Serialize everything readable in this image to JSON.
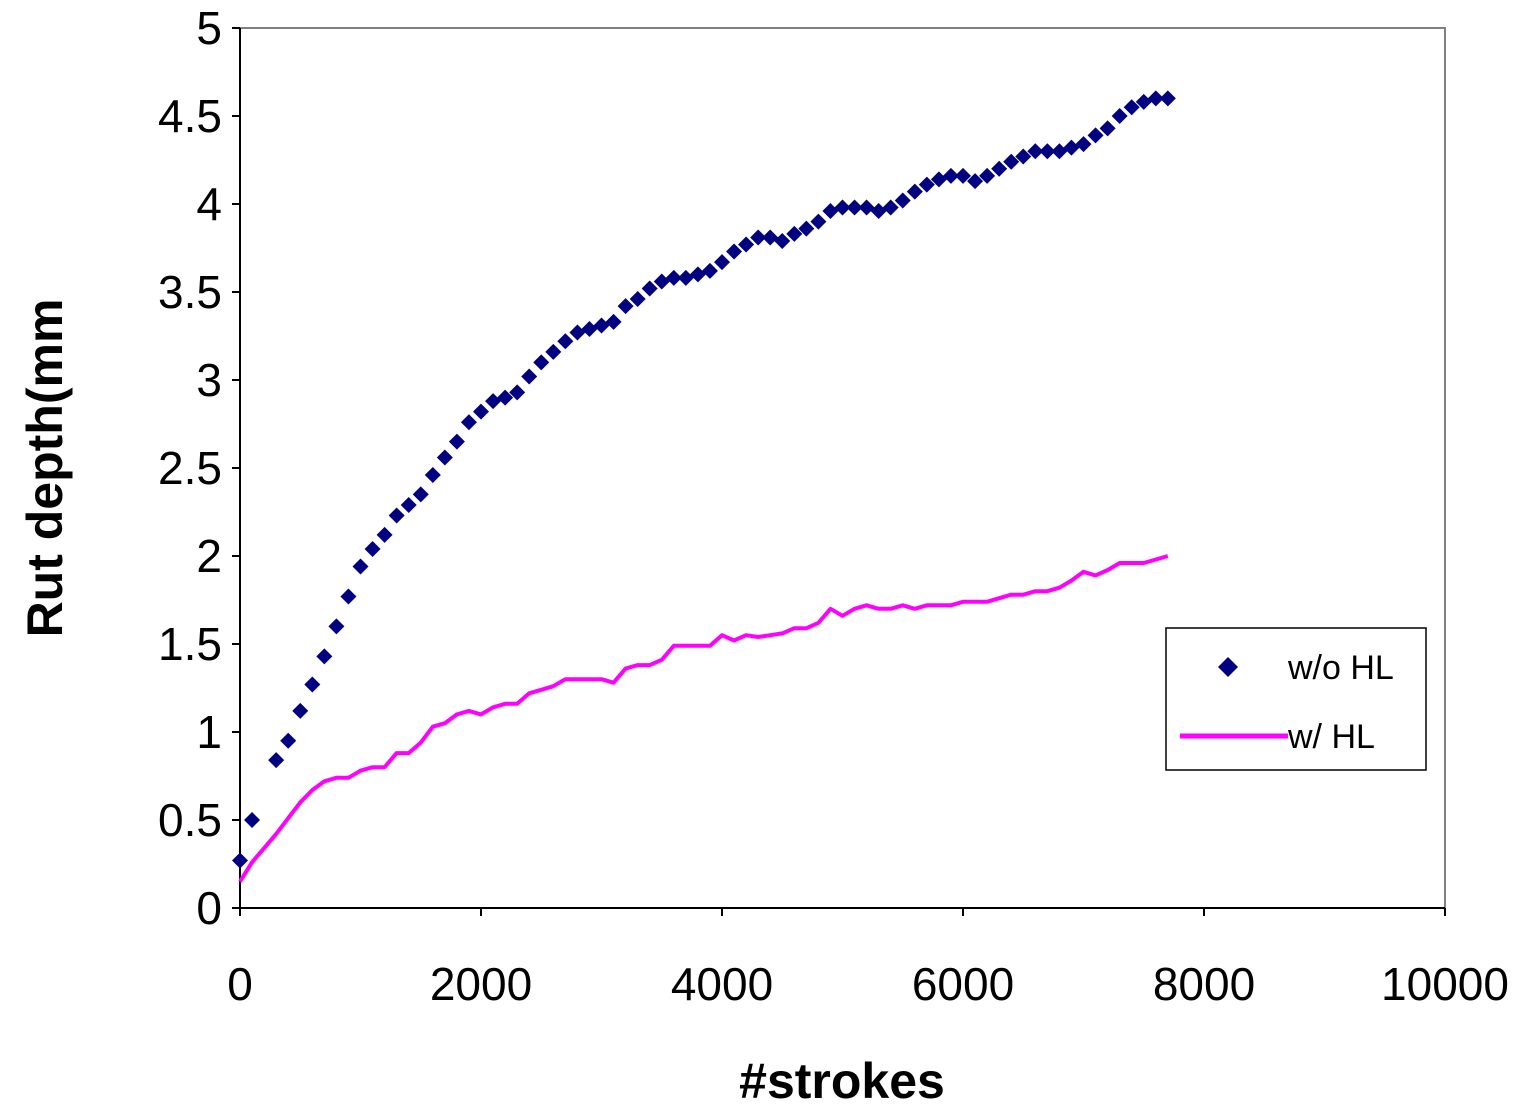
{
  "chart_data": {
    "type": "scatter",
    "xlabel": "#strokes",
    "ylabel": "Rut depth(mm",
    "xlim": [
      0,
      10000
    ],
    "ylim": [
      0,
      5
    ],
    "xticks": [
      "0",
      "2000",
      "4000",
      "6000",
      "8000",
      "10000"
    ],
    "yticks": [
      "0",
      "0.5",
      "1",
      "1.5",
      "2",
      "2.5",
      "3",
      "3.5",
      "4",
      "4.5",
      "5"
    ],
    "grid": false,
    "legend_position": "right",
    "series": [
      {
        "name": "w/o HL",
        "marker": "diamond",
        "color": "#000080",
        "x": [
          0,
          100,
          300,
          400,
          500,
          600,
          700,
          800,
          900,
          1000,
          1100,
          1200,
          1300,
          1400,
          1500,
          1600,
          1700,
          1800,
          1900,
          2000,
          2100,
          2200,
          2300,
          2400,
          2500,
          2600,
          2700,
          2800,
          2900,
          3000,
          3100,
          3200,
          3300,
          3400,
          3500,
          3600,
          3700,
          3800,
          3900,
          4000,
          4100,
          4200,
          4300,
          4400,
          4500,
          4600,
          4700,
          4800,
          4900,
          5000,
          5100,
          5200,
          5300,
          5400,
          5500,
          5600,
          5700,
          5800,
          5900,
          6000,
          6100,
          6200,
          6300,
          6400,
          6500,
          6600,
          6700,
          6800,
          6900,
          7000,
          7100,
          7200,
          7300,
          7400,
          7500,
          7600,
          7700
        ],
        "y": [
          0.27,
          0.5,
          0.84,
          0.95,
          1.12,
          1.27,
          1.43,
          1.6,
          1.77,
          1.94,
          2.04,
          2.12,
          2.23,
          2.29,
          2.35,
          2.46,
          2.56,
          2.65,
          2.76,
          2.82,
          2.88,
          2.9,
          2.93,
          3.02,
          3.1,
          3.16,
          3.22,
          3.27,
          3.29,
          3.31,
          3.33,
          3.42,
          3.46,
          3.52,
          3.56,
          3.58,
          3.58,
          3.6,
          3.62,
          3.67,
          3.73,
          3.77,
          3.81,
          3.81,
          3.79,
          3.83,
          3.86,
          3.9,
          3.96,
          3.98,
          3.98,
          3.98,
          3.96,
          3.98,
          4.02,
          4.07,
          4.11,
          4.14,
          4.16,
          4.16,
          4.13,
          4.16,
          4.2,
          4.24,
          4.27,
          4.3,
          4.3,
          4.3,
          4.32,
          4.34,
          4.39,
          4.43,
          4.5,
          4.55,
          4.58,
          4.6,
          4.6
        ]
      },
      {
        "name": "w/ HL",
        "line": true,
        "color": "#ff00ff",
        "x": [
          0,
          100,
          200,
          300,
          400,
          500,
          600,
          700,
          800,
          900,
          1000,
          1100,
          1200,
          1300,
          1400,
          1500,
          1600,
          1700,
          1800,
          1900,
          2000,
          2100,
          2200,
          2300,
          2400,
          2500,
          2600,
          2700,
          2800,
          2900,
          3000,
          3100,
          3200,
          3300,
          3400,
          3500,
          3600,
          3700,
          3800,
          3900,
          4000,
          4100,
          4200,
          4300,
          4400,
          4500,
          4600,
          4700,
          4800,
          4900,
          5000,
          5100,
          5200,
          5300,
          5400,
          5500,
          5600,
          5700,
          5800,
          5900,
          6000,
          6100,
          6200,
          6300,
          6400,
          6500,
          6600,
          6700,
          6800,
          6900,
          7000,
          7100,
          7200,
          7300,
          7400,
          7500,
          7600,
          7700
        ],
        "y": [
          0.15,
          0.26,
          0.34,
          0.42,
          0.51,
          0.6,
          0.67,
          0.72,
          0.74,
          0.74,
          0.78,
          0.8,
          0.8,
          0.88,
          0.88,
          0.94,
          1.03,
          1.05,
          1.1,
          1.12,
          1.1,
          1.14,
          1.16,
          1.16,
          1.22,
          1.24,
          1.26,
          1.3,
          1.3,
          1.3,
          1.3,
          1.28,
          1.36,
          1.38,
          1.38,
          1.41,
          1.49,
          1.49,
          1.49,
          1.49,
          1.55,
          1.52,
          1.55,
          1.54,
          1.55,
          1.56,
          1.59,
          1.59,
          1.62,
          1.7,
          1.66,
          1.7,
          1.72,
          1.7,
          1.7,
          1.72,
          1.7,
          1.72,
          1.72,
          1.72,
          1.74,
          1.74,
          1.74,
          1.76,
          1.78,
          1.78,
          1.8,
          1.8,
          1.82,
          1.86,
          1.91,
          1.89,
          1.92,
          1.96,
          1.96,
          1.96,
          1.98,
          2.0
        ]
      }
    ]
  }
}
